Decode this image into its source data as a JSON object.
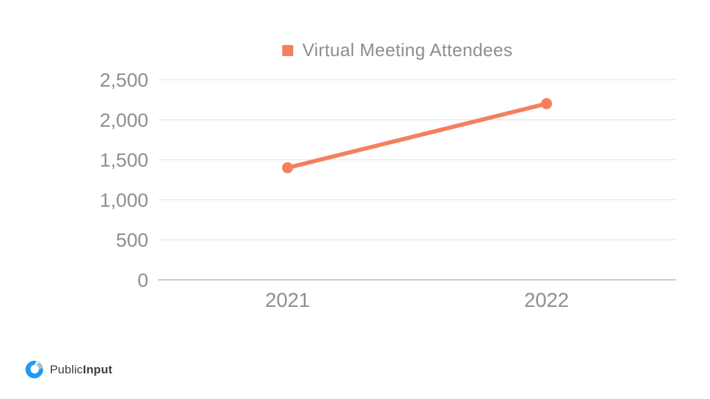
{
  "chart_data": {
    "type": "line",
    "title": "",
    "categories": [
      "2021",
      "2022"
    ],
    "series": [
      {
        "name": "Virtual Meeting Attendees",
        "color": "#F4805E",
        "values": [
          1400,
          2200
        ]
      }
    ],
    "ylim": [
      0,
      2500
    ],
    "ytick_step": 500,
    "ytick_labels": [
      "0",
      "500",
      "1,000",
      "1,500",
      "2,000",
      "2,500"
    ],
    "grid": true,
    "legend": {
      "label": "Virtual Meeting Attendees",
      "marker_color": "#F4805E",
      "position": "top-center"
    },
    "colors": {
      "line": "#F4805E",
      "marker": "#F4805E",
      "gridline": "#e7e7e7",
      "axis_line": "#c9c9c9",
      "tick_text": "#8e8e8e"
    }
  },
  "branding": {
    "logo_icon": "publicinput-circle-icon",
    "logo_text_regular": "Public",
    "logo_text_bold": "Input"
  }
}
